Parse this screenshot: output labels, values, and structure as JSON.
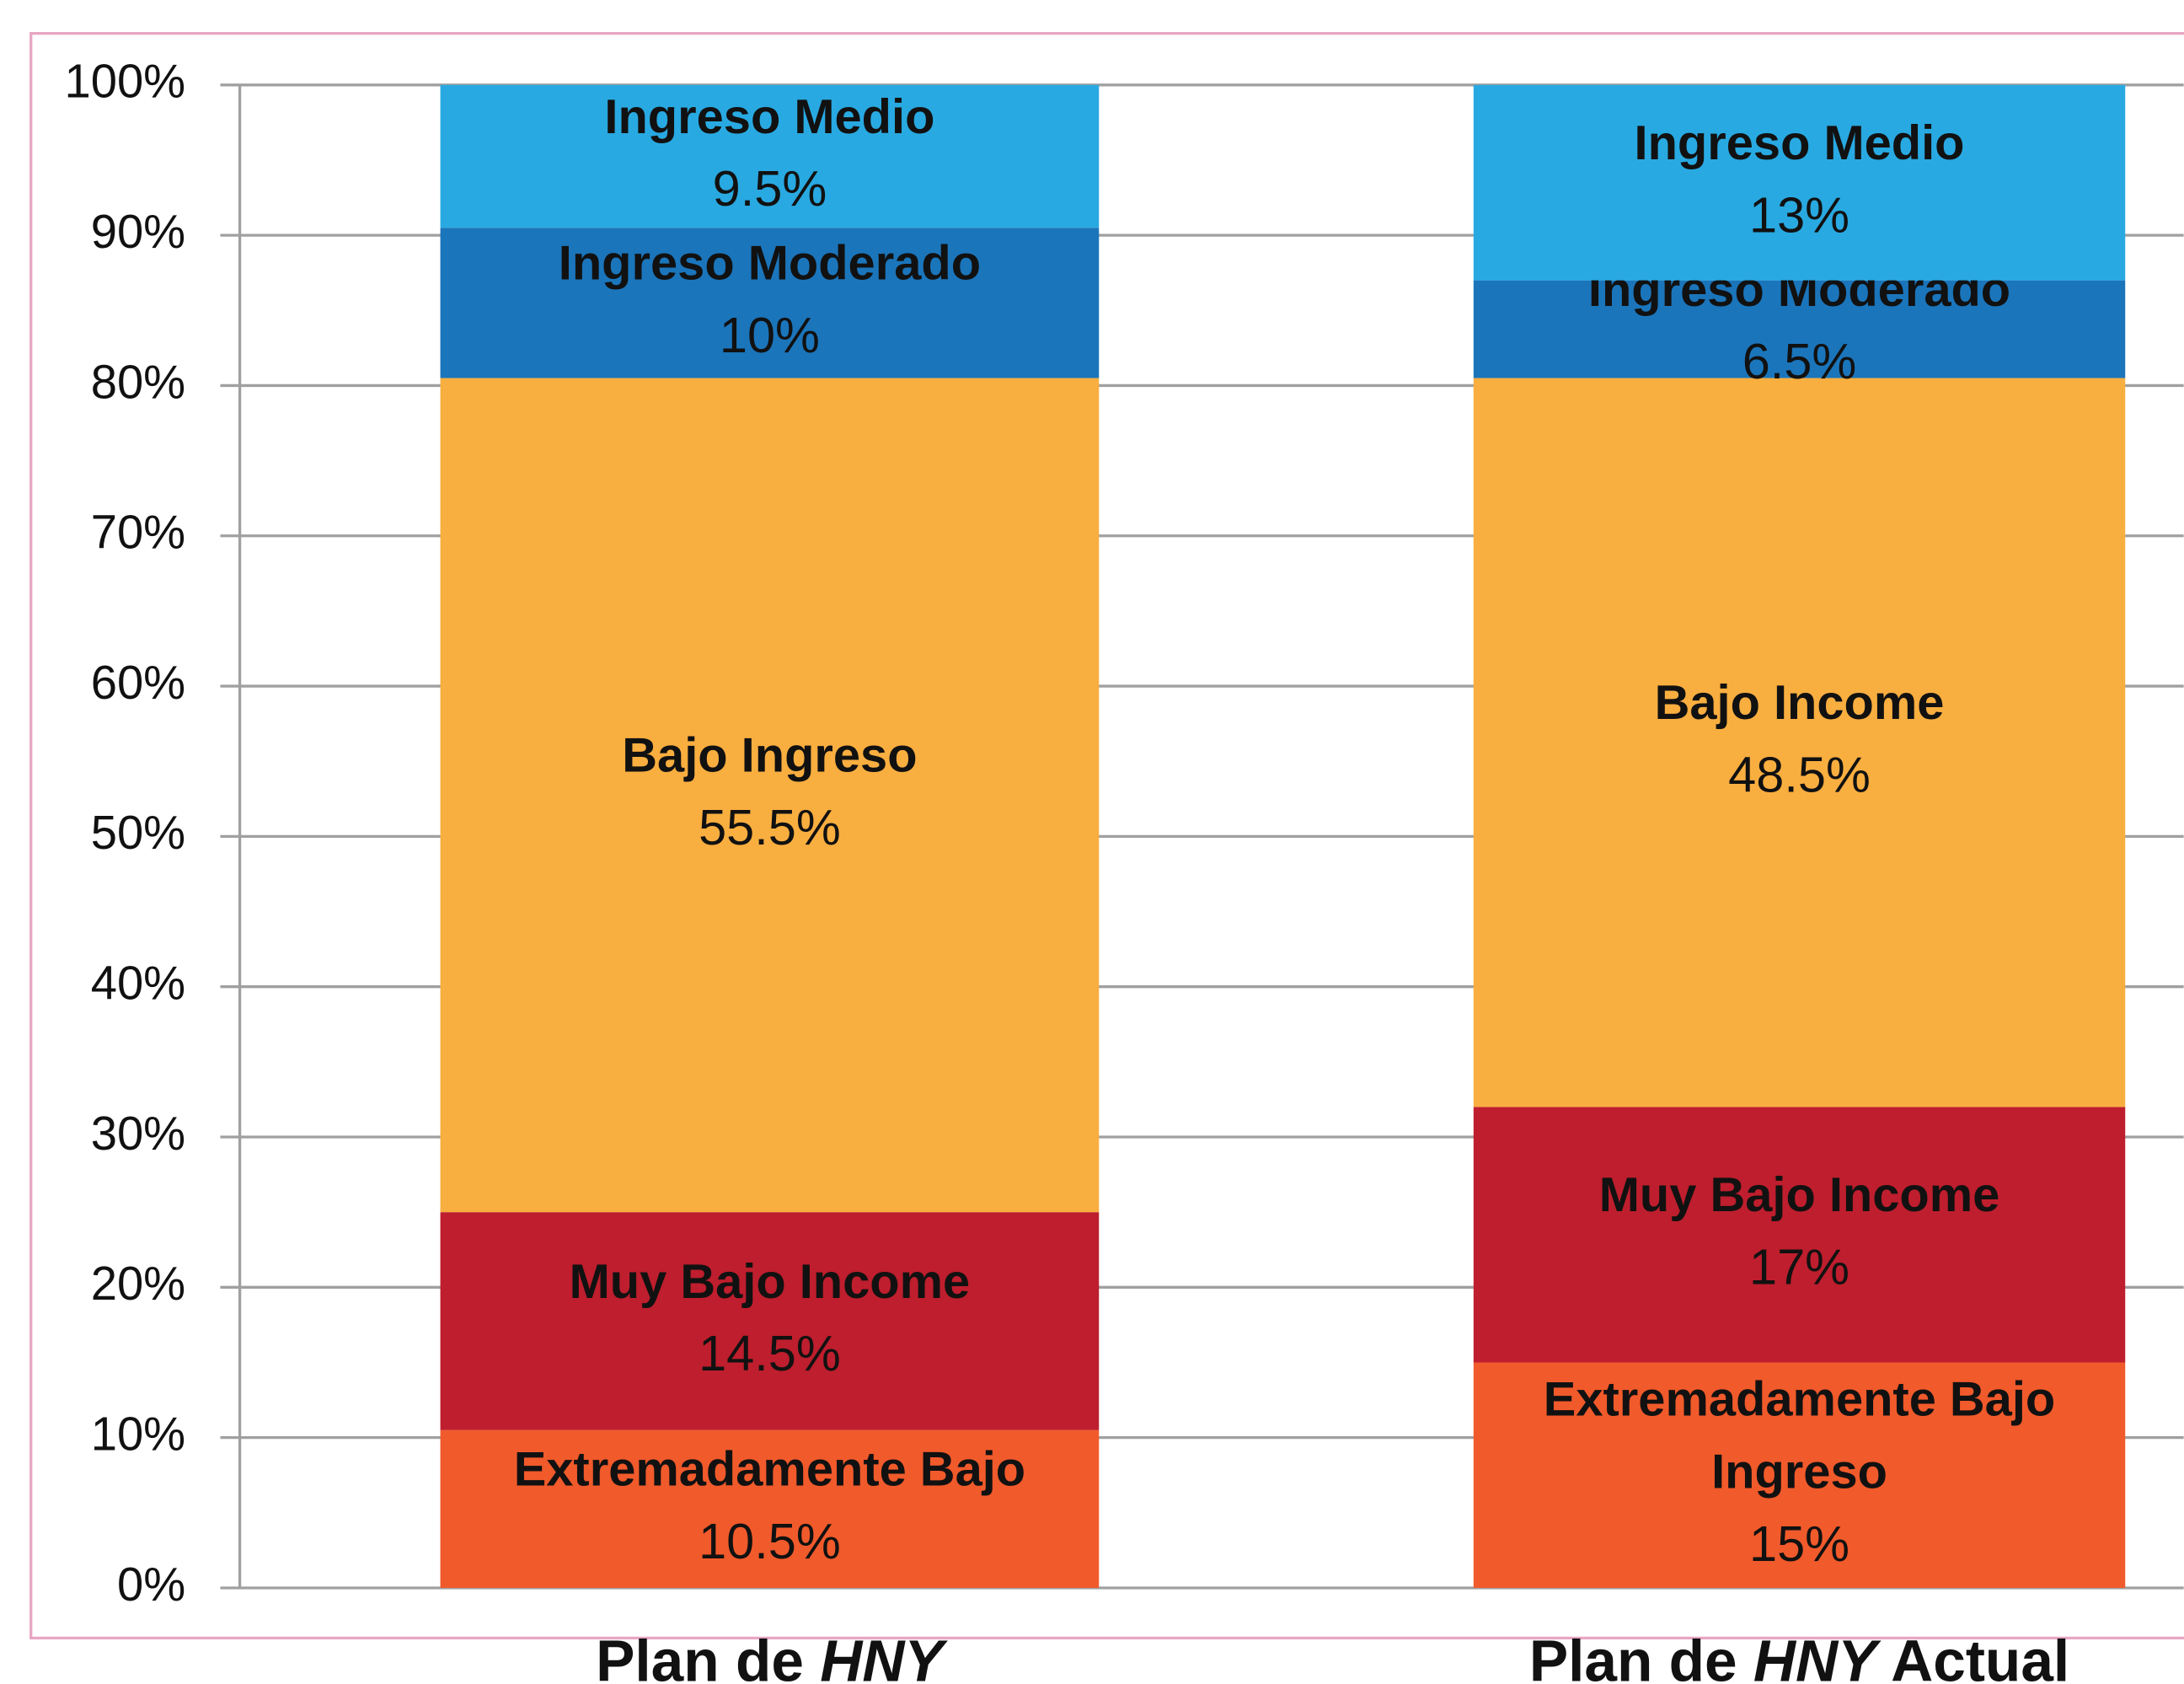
{
  "chart_data": {
    "type": "stacked_bar",
    "categories": [
      [
        "Plan de ",
        "HNY"
      ],
      [
        "Plan de ",
        "HNY",
        " Actual"
      ]
    ],
    "series": [
      {
        "labels": [
          [
            "Extremadamente Bajo"
          ],
          [
            "Extremadamente Bajo",
            "Ingreso"
          ]
        ],
        "color": "#f15a2b",
        "values": [
          10.5,
          15
        ],
        "value_labels": [
          "10.5%",
          "15%"
        ]
      },
      {
        "labels": [
          [
            "Muy Bajo Income"
          ],
          [
            "Muy Bajo Income"
          ]
        ],
        "color": "#be1e2d",
        "values": [
          14.5,
          17
        ],
        "value_labels": [
          "14.5%",
          "17%"
        ]
      },
      {
        "labels": [
          [
            "Bajo Ingreso"
          ],
          [
            "Bajo Income"
          ]
        ],
        "color": "#f9ae40",
        "values": [
          55.5,
          48.5
        ],
        "value_labels": [
          "55.5%",
          "48.5%"
        ]
      },
      {
        "labels": [
          [
            "Ingreso Moderado"
          ],
          [
            "Ingreso Moderado"
          ]
        ],
        "color": "#1b75bb",
        "values": [
          10,
          6.5
        ],
        "value_labels": [
          "10%",
          "6.5%"
        ]
      },
      {
        "labels": [
          [
            "Ingreso Medio"
          ],
          [
            "Ingreso Medio"
          ]
        ],
        "color": "#29a9e1",
        "values": [
          9.5,
          13
        ],
        "value_labels": [
          "9.5%",
          "13%"
        ]
      }
    ],
    "ylim": [
      0,
      100
    ],
    "yticks": [
      {
        "value": 0,
        "label": "0%"
      },
      {
        "value": 10,
        "label": "10%"
      },
      {
        "value": 20,
        "label": "20%"
      },
      {
        "value": 30,
        "label": "30%"
      },
      {
        "value": 40,
        "label": "40%"
      },
      {
        "value": 50,
        "label": "50%"
      },
      {
        "value": 60,
        "label": "60%"
      },
      {
        "value": 70,
        "label": "70%"
      },
      {
        "value": 80,
        "label": "80%"
      },
      {
        "value": 90,
        "label": "90%"
      },
      {
        "value": 100,
        "label": "100%"
      }
    ],
    "grid": true
  }
}
